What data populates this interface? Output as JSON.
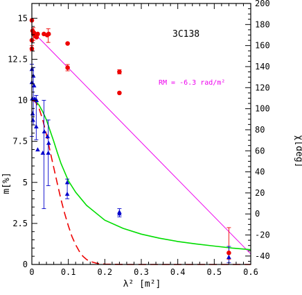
{
  "chart_data": {
    "type": "scatter",
    "object_label": "3C138",
    "annotation": "RM =  -6.3 rad/m²",
    "xlabel": "λ² [m²]",
    "ylabel_left": "m[%]",
    "ylabel_right": "χ[deg]",
    "xlim": [
      0,
      0.6
    ],
    "ylim_left": [
      0,
      15.9
    ],
    "ylim_right": [
      -48,
      200
    ],
    "x_ticks": [
      "0",
      "0.1",
      "0.2",
      "0.3",
      "0.4",
      "0.5",
      "0.6"
    ],
    "x_tick_values": [
      0,
      0.1,
      0.2,
      0.3,
      0.4,
      0.5,
      0.6
    ],
    "y_left_ticks": [
      "0",
      "2.5",
      "5",
      "7.5",
      "10",
      "12.5",
      "15"
    ],
    "y_left_tick_values": [
      0,
      2.5,
      5,
      7.5,
      10,
      12.5,
      15
    ],
    "y_right_ticks": [
      "-40",
      "-20",
      "0",
      "20",
      "40",
      "60",
      "80",
      "100",
      "120",
      "140",
      "160",
      "180",
      "200"
    ],
    "y_right_tick_values": [
      -40,
      -20,
      0,
      20,
      40,
      60,
      80,
      100,
      120,
      140,
      160,
      180,
      200
    ],
    "colors": {
      "angle_points": "#ee0000",
      "pol_points": "#0000cc",
      "rm_fit": "#ee00ee",
      "green_model": "#00dd00",
      "red_model": "#ee0000",
      "axes": "#000000"
    },
    "series": [
      {
        "kind": "angle_points",
        "axis": "right",
        "marker": "circle",
        "points": [
          {
            "x": 0.0,
            "y": 184
          },
          {
            "x": 0.0,
            "y": 165
          },
          {
            "x": 0.0,
            "y": 157
          },
          {
            "x": 0.002,
            "y": 174
          },
          {
            "x": 0.004,
            "y": 171
          },
          {
            "x": 0.006,
            "y": 172
          },
          {
            "x": 0.009,
            "y": 169
          },
          {
            "x": 0.013,
            "y": 168
          },
          {
            "x": 0.016,
            "y": 171
          },
          {
            "x": 0.033,
            "y": 171
          },
          {
            "x": 0.042,
            "y": 170
          },
          {
            "x": 0.046,
            "y": 171
          },
          {
            "x": 0.098,
            "y": 162
          },
          {
            "x": 0.098,
            "y": 139
          },
          {
            "x": 0.24,
            "y": 135
          },
          {
            "x": 0.24,
            "y": 115
          },
          {
            "x": 0.54,
            "y": -37
          }
        ],
        "errors": [
          {
            "x": 0.0,
            "lo": 155,
            "hi": 160
          },
          {
            "x": 0.004,
            "lo": 165,
            "hi": 177
          },
          {
            "x": 0.045,
            "lo": 163,
            "hi": 176
          },
          {
            "x": 0.098,
            "lo": 136,
            "hi": 142
          },
          {
            "x": 0.24,
            "lo": 133,
            "hi": 137
          },
          {
            "x": 0.54,
            "lo": -43,
            "hi": -13
          }
        ]
      },
      {
        "kind": "pol_points",
        "axis": "left",
        "marker": "triangle",
        "points": [
          {
            "x": 0.0,
            "y": 11.9
          },
          {
            "x": 0.0,
            "y": 11.1
          },
          {
            "x": 0.001,
            "y": 10.1
          },
          {
            "x": 0.002,
            "y": 9.2
          },
          {
            "x": 0.003,
            "y": 8.8
          },
          {
            "x": 0.004,
            "y": 11.5
          },
          {
            "x": 0.006,
            "y": 10.9
          },
          {
            "x": 0.008,
            "y": 10.1
          },
          {
            "x": 0.012,
            "y": 8.4
          },
          {
            "x": 0.013,
            "y": 10.0
          },
          {
            "x": 0.016,
            "y": 7.0
          },
          {
            "x": 0.03,
            "y": 6.8
          },
          {
            "x": 0.034,
            "y": 8.1
          },
          {
            "x": 0.043,
            "y": 7.8
          },
          {
            "x": 0.045,
            "y": 6.8
          },
          {
            "x": 0.046,
            "y": 7.4
          },
          {
            "x": 0.097,
            "y": 5.0
          },
          {
            "x": 0.097,
            "y": 4.3
          },
          {
            "x": 0.24,
            "y": 3.2
          },
          {
            "x": 0.24,
            "y": 3.1
          },
          {
            "x": 0.54,
            "y": 0.45
          }
        ],
        "errors": [
          {
            "x": 0.0,
            "lo": 7.8,
            "hi": 12.2
          },
          {
            "x": 0.004,
            "lo": 8.5,
            "hi": 12.0
          },
          {
            "x": 0.012,
            "lo": 7.6,
            "hi": 10.3
          },
          {
            "x": 0.033,
            "lo": 3.4,
            "hi": 10.0
          },
          {
            "x": 0.045,
            "lo": 4.8,
            "hi": 8.8
          },
          {
            "x": 0.097,
            "lo": 4.0,
            "hi": 5.2
          },
          {
            "x": 0.24,
            "lo": 2.9,
            "hi": 3.4
          },
          {
            "x": 0.54,
            "lo": 0.1,
            "hi": 1.1
          }
        ]
      },
      {
        "kind": "rm_fit",
        "axis": "right",
        "line": "solid",
        "points": [
          {
            "x": 0.0,
            "y": 174
          },
          {
            "x": 0.6,
            "y": -38
          }
        ]
      },
      {
        "kind": "green_model",
        "axis": "left",
        "line": "solid",
        "points": [
          {
            "x": 0.0,
            "y": 10.0
          },
          {
            "x": 0.01,
            "y": 9.95
          },
          {
            "x": 0.02,
            "y": 9.7
          },
          {
            "x": 0.03,
            "y": 9.3
          },
          {
            "x": 0.04,
            "y": 8.8
          },
          {
            "x": 0.05,
            "y": 8.15
          },
          {
            "x": 0.06,
            "y": 7.5
          },
          {
            "x": 0.07,
            "y": 6.8
          },
          {
            "x": 0.08,
            "y": 6.15
          },
          {
            "x": 0.1,
            "y": 5.1
          },
          {
            "x": 0.12,
            "y": 4.4
          },
          {
            "x": 0.15,
            "y": 3.6
          },
          {
            "x": 0.2,
            "y": 2.7
          },
          {
            "x": 0.25,
            "y": 2.2
          },
          {
            "x": 0.3,
            "y": 1.85
          },
          {
            "x": 0.35,
            "y": 1.6
          },
          {
            "x": 0.4,
            "y": 1.4
          },
          {
            "x": 0.45,
            "y": 1.25
          },
          {
            "x": 0.5,
            "y": 1.12
          },
          {
            "x": 0.55,
            "y": 1.0
          },
          {
            "x": 0.6,
            "y": 0.9
          }
        ]
      },
      {
        "kind": "red_model",
        "axis": "left",
        "line": "dashed",
        "points": [
          {
            "x": 0.0,
            "y": 10.0
          },
          {
            "x": 0.01,
            "y": 9.9
          },
          {
            "x": 0.02,
            "y": 9.5
          },
          {
            "x": 0.03,
            "y": 8.8
          },
          {
            "x": 0.04,
            "y": 7.9
          },
          {
            "x": 0.05,
            "y": 6.9
          },
          {
            "x": 0.06,
            "y": 5.9
          },
          {
            "x": 0.07,
            "y": 4.9
          },
          {
            "x": 0.08,
            "y": 3.95
          },
          {
            "x": 0.09,
            "y": 3.1
          },
          {
            "x": 0.1,
            "y": 2.35
          },
          {
            "x": 0.11,
            "y": 1.7
          },
          {
            "x": 0.12,
            "y": 1.2
          },
          {
            "x": 0.13,
            "y": 0.8
          },
          {
            "x": 0.14,
            "y": 0.5
          },
          {
            "x": 0.15,
            "y": 0.3
          },
          {
            "x": 0.16,
            "y": 0.18
          },
          {
            "x": 0.18,
            "y": 0.06
          },
          {
            "x": 0.2,
            "y": 0.02
          },
          {
            "x": 0.25,
            "y": 0.0
          },
          {
            "x": 0.6,
            "y": 0.0
          }
        ]
      }
    ]
  }
}
